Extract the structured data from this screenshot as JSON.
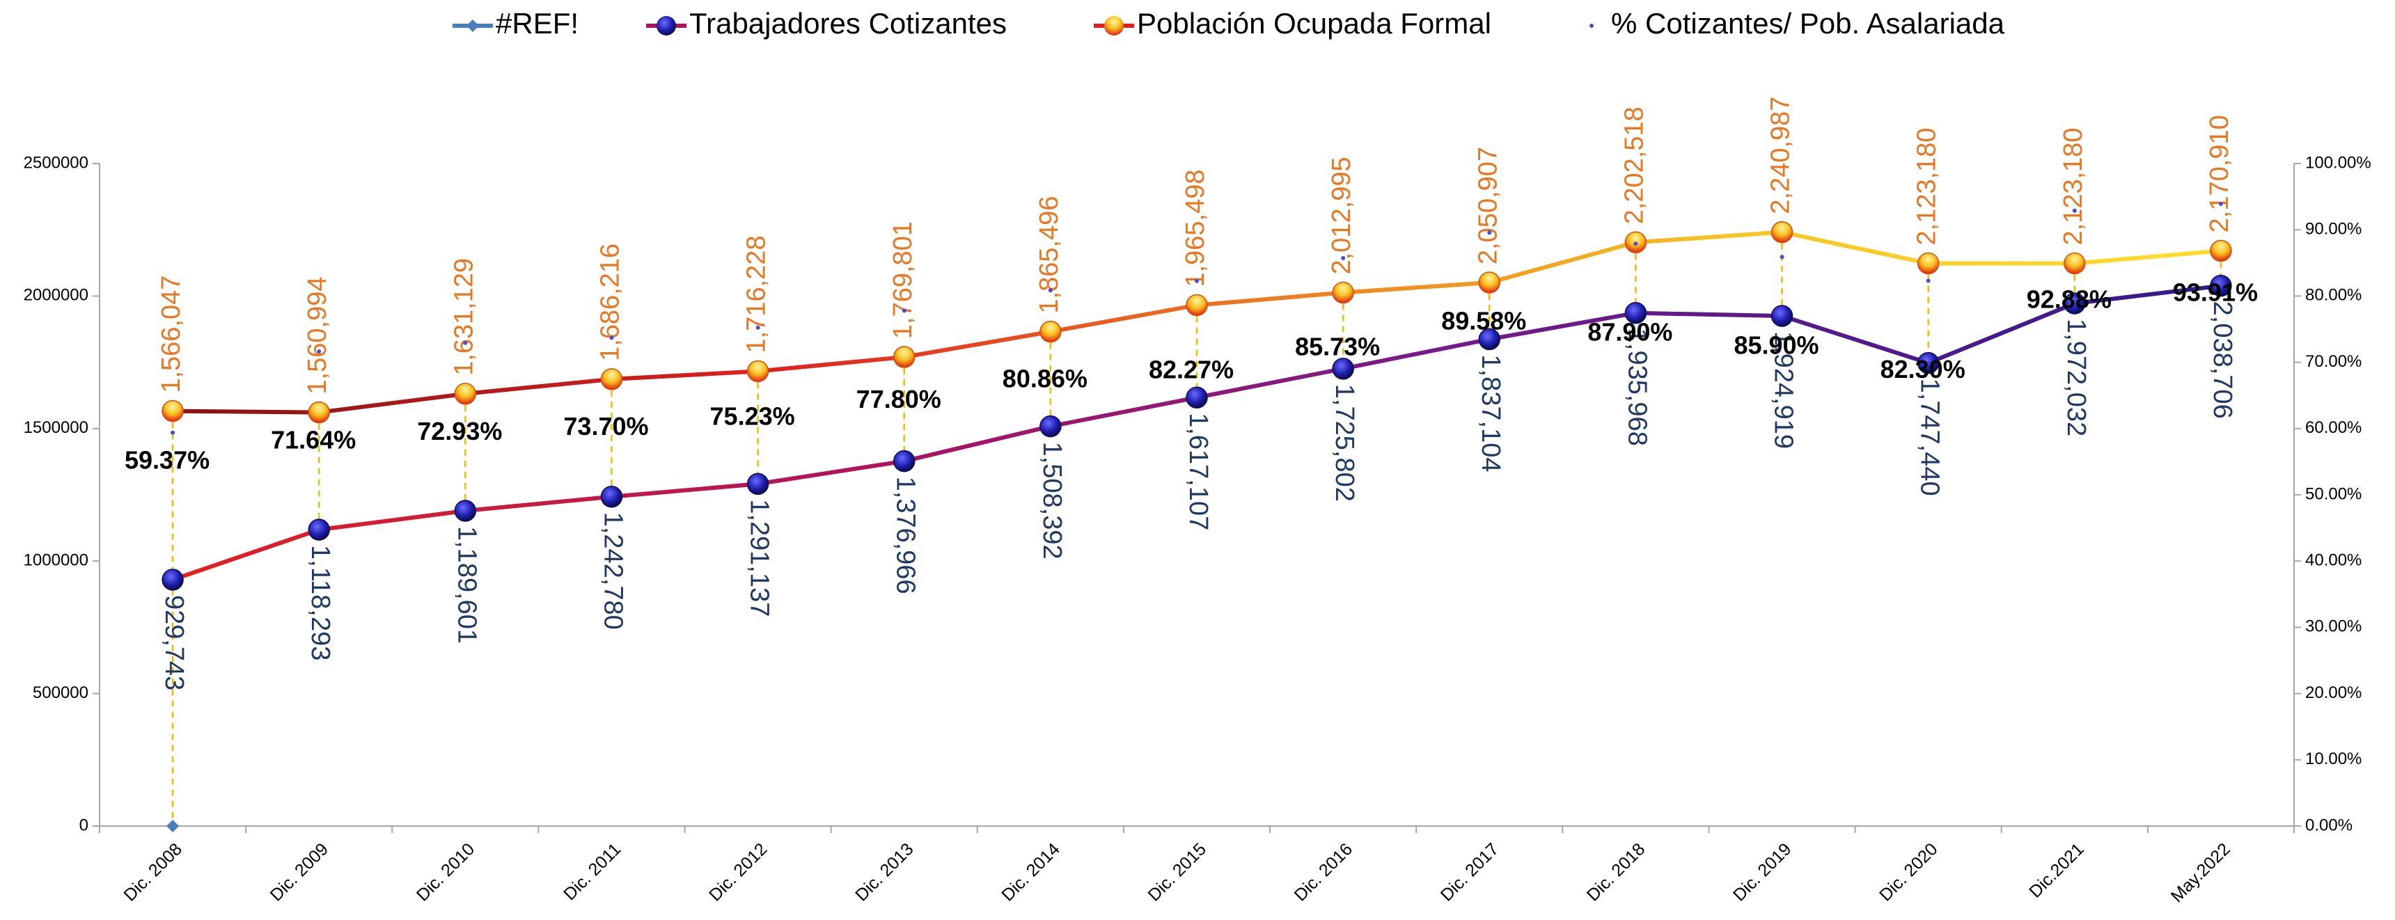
{
  "chart_data": {
    "type": "line",
    "categories": [
      "Dic. 2008",
      "Dic. 2009",
      "Dic. 2010",
      "Dic. 2011",
      "Dic. 2012",
      "Dic. 2013",
      "Dic. 2014",
      "Dic. 2015",
      "Dic. 2016",
      "Dic. 2017",
      "Dic. 2018",
      "Dic. 2019",
      "Dic. 2020",
      "Dic.2021",
      "May.2022"
    ],
    "series": [
      {
        "name": "#REF!",
        "color": "#4a7ebb",
        "marker": "diamond",
        "values": [
          0,
          null,
          null,
          null,
          null,
          null,
          null,
          null,
          null,
          null,
          null,
          null,
          null,
          null,
          null
        ]
      },
      {
        "name": "Trabajadores Cotizantes",
        "color": "#2a2ab0",
        "marker": "circle",
        "label_color": "#1f3864",
        "gradient": [
          [
            0,
            "#e8231a"
          ],
          [
            0.35,
            "#b0135e"
          ],
          [
            0.6,
            "#7a1a8a"
          ],
          [
            1,
            "#2b1a8c"
          ]
        ],
        "values": [
          929743,
          1118293,
          1189601,
          1242780,
          1291137,
          1376966,
          1508392,
          1617107,
          1725802,
          1837104,
          1935968,
          1924919,
          1747440,
          1972032,
          2038706
        ],
        "value_labels": [
          "929,743",
          "1,118,293",
          "1,189,601",
          "1,242,780",
          "1,291,137",
          "1,376,966",
          "1,508,392",
          "1,617,107",
          "1,725,802",
          "1,837,104",
          "1,935,968",
          "1,924,919",
          "1,747,440",
          "1,972,032",
          "2,038,706"
        ]
      },
      {
        "name": "Población Ocupada Formal",
        "color": "#f5a623",
        "marker": "circle",
        "label_color": "#e87722",
        "gradient": [
          [
            0,
            "#7b1010"
          ],
          [
            0.3,
            "#e02020"
          ],
          [
            0.55,
            "#f08020"
          ],
          [
            0.75,
            "#f6c620"
          ],
          [
            1,
            "#ffe030"
          ]
        ],
        "values": [
          1566047,
          1560994,
          1631129,
          1686216,
          1716228,
          1769801,
          1865496,
          1965498,
          2012995,
          2050907,
          2202518,
          2240987,
          2123180,
          2123180,
          2170910
        ],
        "value_labels": [
          "1,566,047",
          "1,560,994",
          "1,631,129",
          "1,686,216",
          "1,716,228",
          "1,769,801",
          "1,865,496",
          "1,965,498",
          "2,012,995",
          "2,050,907",
          "2,202,518",
          "2,240,987",
          "2,123,180",
          "2,123,180",
          "2,170,910"
        ]
      },
      {
        "name": "% Cotizantes/ Pob. Asalariada",
        "color": "#4b4bd0",
        "marker": "dot",
        "axis": "y2",
        "label_color": "#000000",
        "values": [
          59.37,
          71.64,
          72.93,
          73.7,
          75.23,
          77.8,
          80.86,
          82.27,
          85.73,
          89.58,
          87.9,
          85.9,
          82.3,
          92.88,
          93.91
        ],
        "value_labels": [
          "59.37%",
          "71.64%",
          "72.93%",
          "73.70%",
          "75.23%",
          "77.80%",
          "80.86%",
          "82.27%",
          "85.73%",
          "89.58%",
          "87.90%",
          "85.90%",
          "82.30%",
          "92.88%",
          "93.91%"
        ]
      }
    ],
    "ylim": [
      0,
      2500000
    ],
    "yticks": [
      0,
      500000,
      1000000,
      1500000,
      2000000,
      2500000
    ],
    "y2lim": [
      0,
      100
    ],
    "y2ticks": [
      {
        "value": 0,
        "label": "0.00%"
      },
      {
        "value": 10,
        "label": "10.00%"
      },
      {
        "value": 20,
        "label": "20.00%"
      },
      {
        "value": 30,
        "label": "30.00%"
      },
      {
        "value": 40,
        "label": "40.00%"
      },
      {
        "value": 50,
        "label": "50.00%"
      },
      {
        "value": 60,
        "label": "60.00%"
      },
      {
        "value": 70,
        "label": "70.00%"
      },
      {
        "value": 80,
        "label": "80.00%"
      },
      {
        "value": 90,
        "label": "90.00%"
      },
      {
        "value": 100,
        "label": "100.00%"
      }
    ],
    "drop_lines": true,
    "legend": "top"
  }
}
